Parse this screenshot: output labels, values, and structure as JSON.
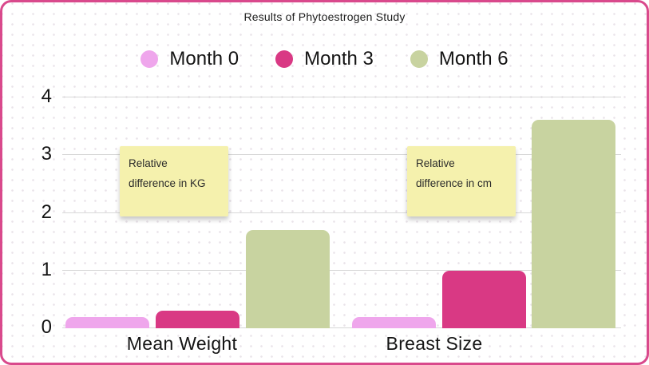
{
  "colors": {
    "card_border": "#d9498c",
    "note_bg": "#f5f1ad",
    "gridline": "#d7d7d7"
  },
  "chart_data": {
    "type": "bar",
    "title": "Results of Phytoestrogen Study",
    "categories": [
      "Mean Weight",
      "Breast Size"
    ],
    "series": [
      {
        "name": "Month 0",
        "color": "#efa6ec",
        "values": [
          0.2,
          0.2
        ]
      },
      {
        "name": "Month 3",
        "color": "#d93984",
        "values": [
          0.3,
          1.0
        ]
      },
      {
        "name": "Month 6",
        "color": "#c8d3a0",
        "values": [
          1.7,
          3.6
        ]
      }
    ],
    "ylim": [
      0,
      4
    ],
    "yticks": [
      0,
      1,
      2,
      3,
      4
    ],
    "grid": true,
    "legend_position": "top",
    "annotations": [
      {
        "lines": [
          "Relative",
          "difference in KG"
        ],
        "category": "Mean Weight"
      },
      {
        "lines": [
          "Relative",
          "difference in cm"
        ],
        "category": "Breast Size"
      }
    ]
  }
}
